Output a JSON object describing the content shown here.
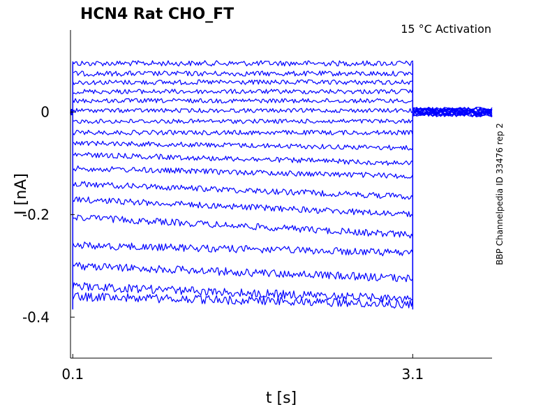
{
  "chart_data": {
    "type": "line",
    "title": "HCN4  Rat  CHO_FT",
    "annotation": "15 °C  Activation",
    "side_label": "BBP Channelpedia ID 33476 rep 2",
    "xlabel": "t [s]",
    "ylabel": "I [nA]",
    "xlim": [
      0.08,
      3.8
    ],
    "ylim": [
      -0.48,
      0.16
    ],
    "xticks": [
      0.1,
      3.1
    ],
    "xtick_labels": [
      "0.1",
      "3.1"
    ],
    "yticks": [
      0,
      -0.2,
      -0.4
    ],
    "ytick_labels": [
      "0",
      "-0.2",
      "-0.4"
    ],
    "grid": false,
    "line_color": "#0000ff",
    "step_start": 0.1,
    "step_end": 3.1,
    "baseline": 0.0,
    "series": [
      {
        "values": [
          0.095,
          0.095
        ]
      },
      {
        "values": [
          0.075,
          0.075
        ]
      },
      {
        "values": [
          0.058,
          0.058
        ]
      },
      {
        "values": [
          0.04,
          0.04
        ]
      },
      {
        "values": [
          0.022,
          0.022
        ]
      },
      {
        "values": [
          0.003,
          0.003
        ]
      },
      {
        "values": [
          -0.018,
          -0.018
        ]
      },
      {
        "values": [
          -0.04,
          -0.04
        ]
      },
      {
        "values": [
          -0.06,
          -0.07
        ]
      },
      {
        "values": [
          -0.083,
          -0.1
        ]
      },
      {
        "values": [
          -0.11,
          -0.125
        ]
      },
      {
        "values": [
          -0.14,
          -0.165
        ]
      },
      {
        "values": [
          -0.17,
          -0.2
        ]
      },
      {
        "values": [
          -0.205,
          -0.24
        ]
      },
      {
        "values": [
          -0.26,
          -0.275
        ]
      },
      {
        "values": [
          -0.3,
          -0.325
        ]
      },
      {
        "values": [
          -0.34,
          -0.365
        ]
      },
      {
        "values": [
          -0.36,
          -0.375
        ]
      }
    ]
  }
}
